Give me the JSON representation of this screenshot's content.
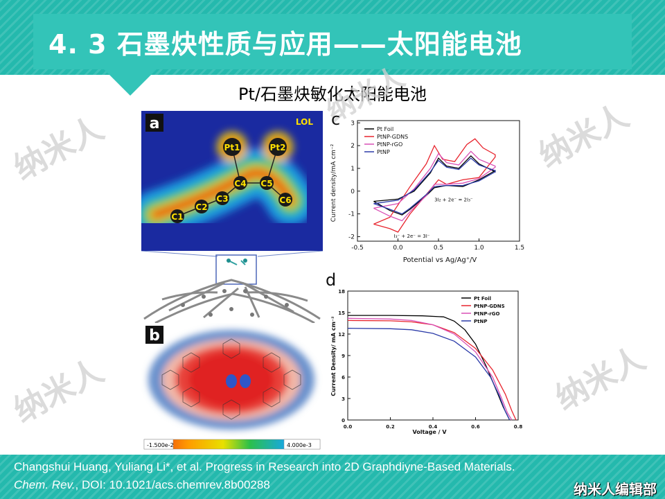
{
  "slide": {
    "title": "4. 3  石墨炔性质与应用——太阳能电池",
    "subtitle": "Pt/石墨炔敏化太阳能电池",
    "watermark": "纳米人"
  },
  "figure": {
    "panel_a": {
      "letter": "a",
      "lol_label": "LOL",
      "atoms": [
        "Pt1",
        "Pt2",
        "C1",
        "C2",
        "C3",
        "C4",
        "C5",
        "C6"
      ]
    },
    "panel_b": {
      "letter": "b",
      "scale_min": "-1.500e-2",
      "scale_max": "4.000e-3"
    }
  },
  "chart_data": [
    {
      "type": "line",
      "panel": "c",
      "xlabel": "Potential vs Ag/Ag⁺/V",
      "ylabel": "Current density/mA cm⁻²",
      "xlim": [
        -0.5,
        1.5
      ],
      "ylim": [
        -2.2,
        3.1
      ],
      "xticks": [
        "-0.5",
        "0.0",
        "0.5",
        "1.0",
        "1.5"
      ],
      "yticks": [
        "-2",
        "-1",
        "0",
        "1",
        "2",
        "3"
      ],
      "legend_position": "top-left",
      "annotations": [
        "3I₂ + 2e⁻ = 2I₃⁻",
        "I₃⁻ + 2e⁻ = 3I⁻"
      ],
      "series": [
        {
          "name": "Pt Foil",
          "color": "#000000",
          "upper": [
            [
              -0.3,
              -0.45
            ],
            [
              0.0,
              -0.35
            ],
            [
              0.2,
              0.0
            ],
            [
              0.4,
              0.8
            ],
            [
              0.5,
              1.45
            ],
            [
              0.6,
              1.1
            ],
            [
              0.75,
              1.0
            ],
            [
              0.9,
              1.55
            ],
            [
              1.0,
              1.2
            ],
            [
              1.2,
              0.85
            ]
          ],
          "lower": [
            [
              1.2,
              0.9
            ],
            [
              1.0,
              0.5
            ],
            [
              0.8,
              0.2
            ],
            [
              0.6,
              0.25
            ],
            [
              0.45,
              0.15
            ],
            [
              0.35,
              -0.2
            ],
            [
              0.15,
              -0.8
            ],
            [
              0.05,
              -1.05
            ],
            [
              -0.1,
              -0.85
            ],
            [
              -0.3,
              -0.45
            ]
          ]
        },
        {
          "name": "PtNP-GDNS",
          "color": "#e8242d",
          "upper": [
            [
              -0.3,
              -1.45
            ],
            [
              -0.1,
              -1.15
            ],
            [
              0.15,
              0.2
            ],
            [
              0.35,
              1.2
            ],
            [
              0.45,
              2.0
            ],
            [
              0.55,
              1.4
            ],
            [
              0.7,
              1.3
            ],
            [
              0.85,
              2.05
            ],
            [
              0.95,
              2.3
            ],
            [
              1.05,
              1.9
            ],
            [
              1.2,
              1.6
            ]
          ],
          "lower": [
            [
              1.2,
              1.5
            ],
            [
              1.0,
              0.6
            ],
            [
              0.8,
              0.5
            ],
            [
              0.6,
              0.3
            ],
            [
              0.5,
              0.5
            ],
            [
              0.35,
              -0.15
            ],
            [
              0.15,
              -1.0
            ],
            [
              0.0,
              -1.8
            ],
            [
              -0.1,
              -1.65
            ],
            [
              -0.3,
              -1.45
            ]
          ]
        },
        {
          "name": "PtNP-rGO",
          "color": "#d94fb5",
          "upper": [
            [
              -0.3,
              -0.75
            ],
            [
              0.0,
              -0.55
            ],
            [
              0.2,
              0.1
            ],
            [
              0.4,
              1.0
            ],
            [
              0.5,
              1.65
            ],
            [
              0.6,
              1.25
            ],
            [
              0.75,
              1.15
            ],
            [
              0.9,
              1.75
            ],
            [
              1.0,
              1.4
            ],
            [
              1.2,
              1.1
            ]
          ],
          "lower": [
            [
              1.2,
              1.05
            ],
            [
              1.0,
              0.55
            ],
            [
              0.8,
              0.35
            ],
            [
              0.6,
              0.3
            ],
            [
              0.45,
              0.3
            ],
            [
              0.35,
              -0.2
            ],
            [
              0.15,
              -0.9
            ],
            [
              0.05,
              -1.3
            ],
            [
              -0.1,
              -1.1
            ],
            [
              -0.3,
              -0.75
            ]
          ]
        },
        {
          "name": "PtNP",
          "color": "#2a3aa8",
          "upper": [
            [
              -0.3,
              -0.55
            ],
            [
              0.0,
              -0.4
            ],
            [
              0.2,
              0.05
            ],
            [
              0.4,
              0.85
            ],
            [
              0.5,
              1.35
            ],
            [
              0.6,
              1.05
            ],
            [
              0.75,
              0.95
            ],
            [
              0.9,
              1.45
            ],
            [
              1.0,
              1.15
            ],
            [
              1.2,
              0.9
            ]
          ],
          "lower": [
            [
              1.2,
              0.85
            ],
            [
              1.0,
              0.45
            ],
            [
              0.8,
              0.25
            ],
            [
              0.6,
              0.25
            ],
            [
              0.45,
              0.2
            ],
            [
              0.35,
              -0.15
            ],
            [
              0.15,
              -0.75
            ],
            [
              0.05,
              -1.0
            ],
            [
              -0.1,
              -0.8
            ],
            [
              -0.3,
              -0.55
            ]
          ]
        }
      ]
    },
    {
      "type": "line",
      "panel": "d",
      "xlabel": "Voltage / V",
      "ylabel": "Current Density/ mA cm⁻²",
      "xlim": [
        0.0,
        0.8
      ],
      "ylim": [
        0,
        18
      ],
      "xticks": [
        "0.0",
        "0.2",
        "0.4",
        "0.6",
        "0.8"
      ],
      "yticks": [
        "0",
        "3",
        "6",
        "9",
        "12",
        "15",
        "18"
      ],
      "legend_position": "top-right",
      "series": [
        {
          "name": "Pt Foil",
          "color": "#000000",
          "points": [
            [
              0,
              14.6
            ],
            [
              0.2,
              14.6
            ],
            [
              0.35,
              14.55
            ],
            [
              0.45,
              14.4
            ],
            [
              0.5,
              13.8
            ],
            [
              0.55,
              12.6
            ],
            [
              0.6,
              10.6
            ],
            [
              0.65,
              7.5
            ],
            [
              0.7,
              4.0
            ],
            [
              0.73,
              1.8
            ],
            [
              0.76,
              0
            ]
          ]
        },
        {
          "name": "PtNP-GDNS",
          "color": "#e8242d",
          "points": [
            [
              0,
              13.9
            ],
            [
              0.2,
              13.85
            ],
            [
              0.3,
              13.7
            ],
            [
              0.4,
              13.3
            ],
            [
              0.5,
              12.2
            ],
            [
              0.6,
              10.0
            ],
            [
              0.68,
              7.0
            ],
            [
              0.74,
              3.6
            ],
            [
              0.77,
              1.3
            ],
            [
              0.79,
              0
            ]
          ]
        },
        {
          "name": "PtNP-rGO",
          "color": "#d94fb5",
          "points": [
            [
              0,
              14.2
            ],
            [
              0.2,
              14.1
            ],
            [
              0.3,
              13.9
            ],
            [
              0.4,
              13.3
            ],
            [
              0.5,
              12.0
            ],
            [
              0.6,
              9.5
            ],
            [
              0.68,
              6.0
            ],
            [
              0.72,
              3.2
            ],
            [
              0.75,
              1.0
            ],
            [
              0.77,
              0
            ]
          ]
        },
        {
          "name": "PtNP",
          "color": "#2a3aa8",
          "points": [
            [
              0,
              12.8
            ],
            [
              0.2,
              12.75
            ],
            [
              0.3,
              12.6
            ],
            [
              0.4,
              12.1
            ],
            [
              0.5,
              11.0
            ],
            [
              0.6,
              8.8
            ],
            [
              0.67,
              6.0
            ],
            [
              0.71,
              3.5
            ],
            [
              0.74,
              1.2
            ],
            [
              0.76,
              0
            ]
          ]
        }
      ]
    }
  ],
  "footer": {
    "citation_line1": "Changshui Huang, Yuliang Li*, et al. Progress in Research into 2D Graphdiyne-Based Materials.",
    "journal": "Chem. Rev.",
    "doi": ", DOI: 10.1021/acs.chemrev.8b00288",
    "logo": "纳米人编辑部"
  }
}
